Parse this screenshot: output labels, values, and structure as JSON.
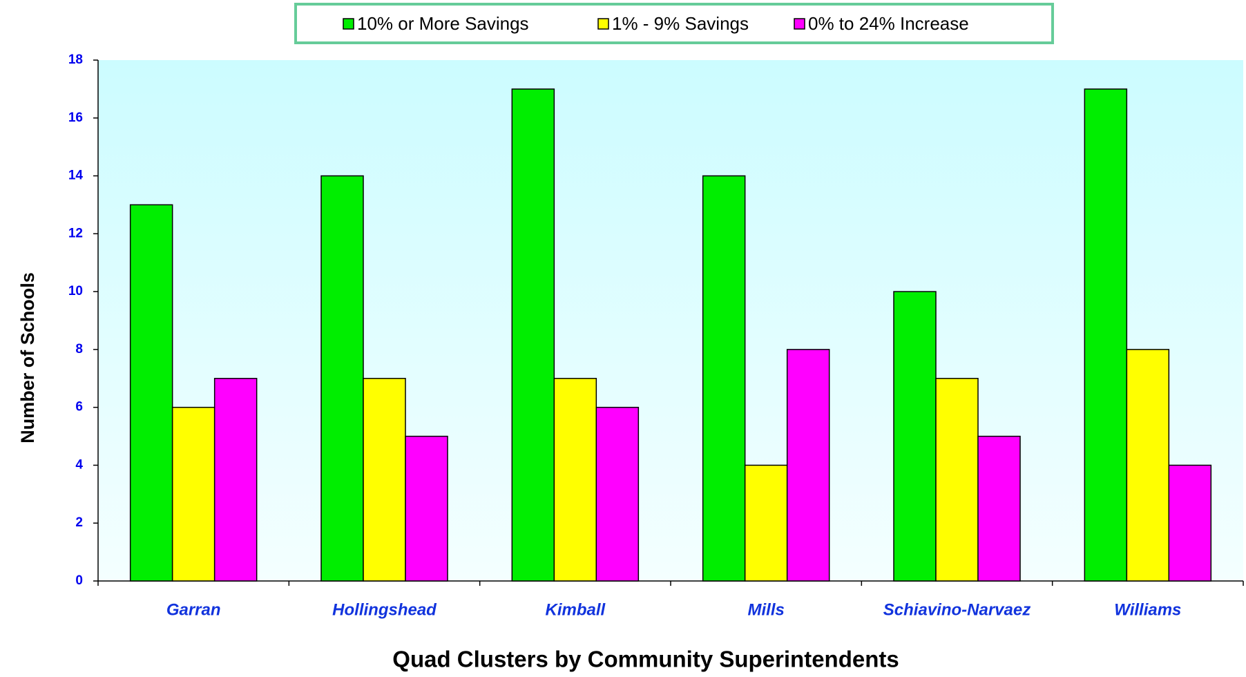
{
  "chart_data": {
    "type": "bar",
    "x_label": "Quad Clusters by Community Superintendents",
    "y_label": "Number  of  Schools",
    "categories": [
      "Garran",
      "Hollingshead",
      "Kimball",
      "Mills",
      "Schiavino-Narvaez",
      "Williams"
    ],
    "series": [
      {
        "name": "10% or More Savings",
        "color": "#00ee00",
        "values": [
          13,
          14,
          17,
          14,
          10,
          17
        ]
      },
      {
        "name": "1% - 9% Savings",
        "color": "#ffff00",
        "values": [
          6,
          7,
          7,
          4,
          7,
          8
        ]
      },
      {
        "name": "0% to 24% Increase",
        "color": "#ff00ff",
        "values": [
          7,
          5,
          6,
          8,
          5,
          4
        ]
      }
    ],
    "ylim": [
      0,
      18
    ],
    "yticks": [
      0,
      2,
      4,
      6,
      8,
      10,
      12,
      14,
      16,
      18
    ],
    "legend": "top"
  }
}
